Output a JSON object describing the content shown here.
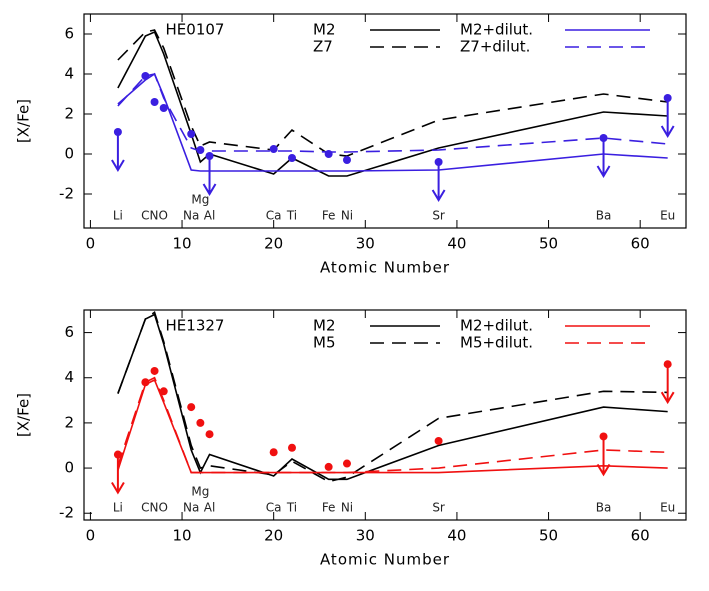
{
  "chart_data": [
    {
      "type": "line",
      "star": "HE0107",
      "star_color": "#3a1fe0",
      "x_label": "Atomic Number",
      "y_label": "[X/Fe]",
      "xlim": [
        -0.7,
        65
      ],
      "xticks": [
        0,
        10,
        20,
        30,
        40,
        50,
        60
      ],
      "ylim": [
        -3.7,
        7
      ],
      "yticks": [
        -2,
        0,
        2,
        4,
        6
      ],
      "x": [
        3,
        6,
        7,
        8,
        11,
        12,
        13,
        20,
        22,
        26,
        28,
        38,
        56,
        63
      ],
      "series": [
        {
          "name": "M2",
          "color": "#000000",
          "linestyle": "solid",
          "values": [
            3.3,
            5.9,
            6.1,
            5.0,
            1.0,
            -0.4,
            0.0,
            -1.0,
            -0.2,
            -1.1,
            -1.1,
            0.3,
            2.1,
            1.9
          ]
        },
        {
          "name": "Z7",
          "color": "#000000",
          "linestyle": "dashed",
          "values": [
            4.7,
            6.1,
            6.2,
            5.3,
            1.4,
            0.4,
            0.6,
            0.2,
            1.2,
            0.0,
            -0.1,
            1.7,
            3.0,
            2.6
          ]
        },
        {
          "name": "M2+dilut.",
          "color": "#3a1fe0",
          "linestyle": "solid",
          "values": [
            2.5,
            3.7,
            4.0,
            2.9,
            -0.8,
            -0.85,
            -0.85,
            -0.85,
            -0.85,
            -0.85,
            -0.85,
            -0.8,
            0.0,
            -0.2
          ]
        },
        {
          "name": "Z7+dilut.",
          "color": "#3a1fe0",
          "linestyle": "dashed",
          "values": [
            2.4,
            3.9,
            4.0,
            2.8,
            0.3,
            0.15,
            0.15,
            0.15,
            0.15,
            0.1,
            0.1,
            0.2,
            0.8,
            0.5
          ]
        }
      ],
      "observed": {
        "color": "#3a1fe0",
        "x": [
          3,
          6,
          7,
          8,
          11,
          12,
          13,
          20,
          22,
          26,
          28,
          38,
          56,
          63
        ],
        "values": [
          1.1,
          3.9,
          2.6,
          2.3,
          1.0,
          0.2,
          -0.1,
          0.25,
          -0.2,
          0.0,
          -0.3,
          -0.4,
          0.8,
          2.8
        ],
        "upper_limit": [
          true,
          false,
          false,
          false,
          false,
          false,
          true,
          false,
          false,
          false,
          false,
          true,
          true,
          true
        ]
      },
      "element_labels": [
        {
          "text": "Li",
          "x": 3
        },
        {
          "text": "CNO",
          "x": 7
        },
        {
          "text": "Na",
          "x": 11
        },
        {
          "text": "Mg",
          "x": 12
        },
        {
          "text": "Al",
          "x": 13
        },
        {
          "text": "Ca",
          "x": 20
        },
        {
          "text": "Ti",
          "x": 22
        },
        {
          "text": "Fe",
          "x": 26
        },
        {
          "text": "Ni",
          "x": 28
        },
        {
          "text": "Sr",
          "x": 38
        },
        {
          "text": "Ba",
          "x": 56
        },
        {
          "text": "Eu",
          "x": 63
        }
      ]
    },
    {
      "type": "line",
      "star": "HE1327",
      "star_color": "#f01010",
      "x_label": "Atomic Number",
      "y_label": "[X/Fe]",
      "xlim": [
        -0.7,
        65
      ],
      "xticks": [
        0,
        10,
        20,
        30,
        40,
        50,
        60
      ],
      "ylim": [
        -2.3,
        7
      ],
      "yticks": [
        -2,
        0,
        2,
        4,
        6
      ],
      "x": [
        3,
        6,
        7,
        8,
        11,
        12,
        13,
        20,
        22,
        26,
        28,
        38,
        56,
        63
      ],
      "series": [
        {
          "name": "M2",
          "color": "#000000",
          "linestyle": "solid",
          "values": [
            3.3,
            6.6,
            6.8,
            5.5,
            0.8,
            -0.2,
            0.6,
            -0.35,
            0.4,
            -0.5,
            -0.5,
            1.0,
            2.7,
            2.5
          ]
        },
        {
          "name": "M5",
          "color": "#000000",
          "linestyle": "dashed",
          "values": [
            3.3,
            6.6,
            6.9,
            5.6,
            1.0,
            0.0,
            0.1,
            -0.3,
            0.3,
            -0.6,
            -0.4,
            2.2,
            3.4,
            3.35
          ]
        },
        {
          "name": "M2+dilut.",
          "color": "#f01010",
          "linestyle": "solid",
          "values": [
            -0.1,
            3.7,
            3.9,
            2.9,
            -0.2,
            -0.2,
            -0.2,
            -0.2,
            -0.2,
            -0.2,
            -0.2,
            -0.2,
            0.1,
            0.0
          ]
        },
        {
          "name": "M5+dilut.",
          "color": "#f01010",
          "linestyle": "dashed",
          "values": [
            0.1,
            3.8,
            4.0,
            3.0,
            -0.2,
            -0.2,
            -0.2,
            -0.2,
            -0.2,
            -0.2,
            -0.2,
            0.0,
            0.8,
            0.7
          ]
        }
      ],
      "observed": {
        "color": "#f01010",
        "x": [
          3,
          6,
          7,
          8,
          11,
          12,
          13,
          20,
          22,
          26,
          28,
          38,
          56,
          63
        ],
        "values": [
          0.6,
          3.8,
          4.3,
          3.4,
          2.7,
          2.0,
          1.5,
          0.7,
          0.9,
          0.05,
          0.2,
          1.2,
          1.4,
          4.6
        ],
        "upper_limit": [
          true,
          false,
          false,
          false,
          false,
          false,
          false,
          false,
          false,
          false,
          false,
          false,
          true,
          true
        ]
      },
      "element_labels": [
        {
          "text": "Li",
          "x": 3
        },
        {
          "text": "CNO",
          "x": 7
        },
        {
          "text": "Na",
          "x": 11
        },
        {
          "text": "Mg",
          "x": 12
        },
        {
          "text": "Al",
          "x": 13
        },
        {
          "text": "Ca",
          "x": 20
        },
        {
          "text": "Ti",
          "x": 22
        },
        {
          "text": "Fe",
          "x": 26
        },
        {
          "text": "Ni",
          "x": 28
        },
        {
          "text": "Sr",
          "x": 38
        },
        {
          "text": "Ba",
          "x": 56
        },
        {
          "text": "Eu",
          "x": 63
        }
      ]
    }
  ]
}
